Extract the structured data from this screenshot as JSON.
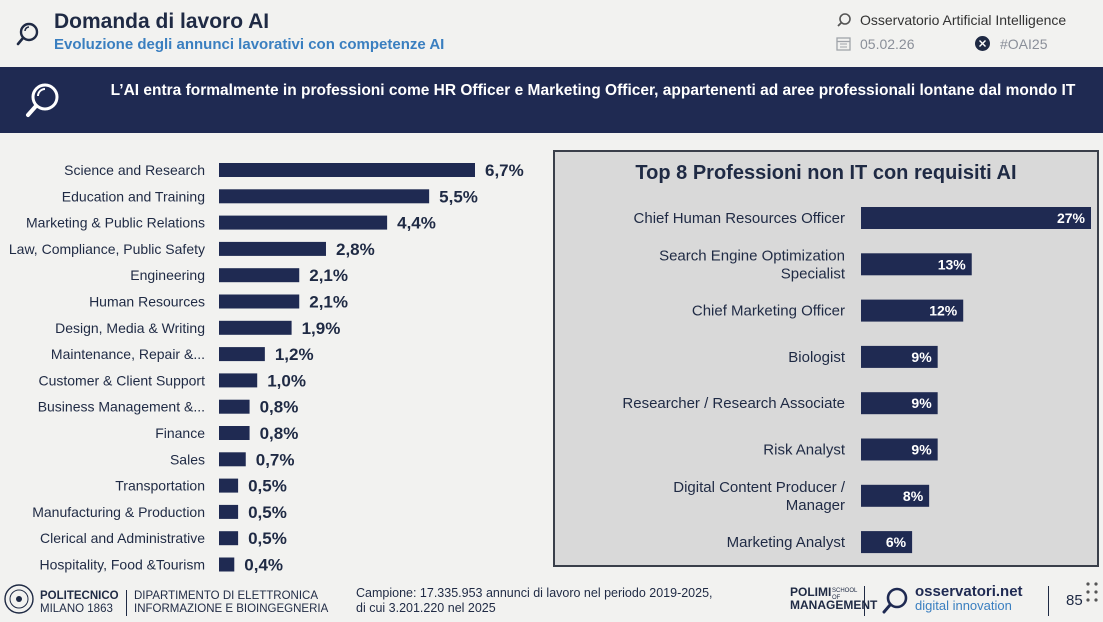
{
  "header": {
    "title": "Domanda di lavoro AI",
    "subtitle": "Evoluzione degli annunci lavorativi con competenze AI",
    "org": "Osservatorio Artificial Intelligence",
    "date": "05.02.26",
    "hashtag": "#OAI25"
  },
  "banner": {
    "text": "L’AI entra formalmente in professioni come HR Officer e Marketing Officer, appartenenti ad aree professionali lontane dal mondo IT"
  },
  "chart_data": [
    {
      "type": "bar",
      "orientation": "horizontal",
      "title": "",
      "categories": [
        "Science and Research",
        "Education and Training",
        "Marketing & Public Relations",
        "Law, Compliance, Public Safety",
        "Engineering",
        "Human Resources",
        "Design, Media & Writing",
        "Maintenance, Repair &...",
        "Customer & Client Support",
        "Business Management &...",
        "Finance",
        "Sales",
        "Transportation",
        "Manufacturing & Production",
        "Clerical and Administrative",
        "Hospitality, Food &Tourism"
      ],
      "values": [
        6.7,
        5.5,
        4.4,
        2.8,
        2.1,
        2.1,
        1.9,
        1.2,
        1.0,
        0.8,
        0.8,
        0.7,
        0.5,
        0.5,
        0.5,
        0.4
      ],
      "labels": [
        "6,7%",
        "5,5%",
        "4,4%",
        "2,8%",
        "2,1%",
        "2,1%",
        "1,9%",
        "1,2%",
        "1,0%",
        "0,8%",
        "0,8%",
        "0,7%",
        "0,5%",
        "0,5%",
        "0,5%",
        "0,4%"
      ],
      "unit": "%",
      "xlim": [
        0,
        6.7
      ],
      "grid": false,
      "color": "#1f2a52"
    },
    {
      "type": "bar",
      "orientation": "horizontal",
      "title": "Top 8 Professioni non IT con requisiti AI",
      "categories": [
        [
          "Chief Human Resources Officer"
        ],
        [
          "Search Engine Optimization",
          "Specialist"
        ],
        [
          "Chief Marketing Officer"
        ],
        [
          "Biologist"
        ],
        [
          "Researcher / Research Associate"
        ],
        [
          "Risk Analyst"
        ],
        [
          "Digital Content Producer /",
          "Manager"
        ],
        [
          "Marketing Analyst"
        ]
      ],
      "values": [
        27,
        13,
        12,
        9,
        9,
        9,
        8,
        6
      ],
      "labels": [
        "27%",
        "13%",
        "12%",
        "9%",
        "9%",
        "9%",
        "8%",
        "6%"
      ],
      "unit": "%",
      "xlim": [
        0,
        27
      ],
      "grid": false,
      "color": "#1f2a52"
    }
  ],
  "footer": {
    "polimi_line1": "POLITECNICO",
    "polimi_line2": "MILANO 1863",
    "dept_line1": "DIPARTIMENTO DI ELETTRONICA",
    "dept_line2": "INFORMAZIONE E BIOINGEGNERIA",
    "campione_line1": "Campione: 17.335.953 annunci di lavoro nel periodo 2019-2025,",
    "campione_line2": "di cui 3.201.220 nel 2025",
    "som_line1": "POLIMI",
    "som_line2": "MANAGEMENT",
    "som_small": "SCHOOL OF",
    "oss_brand": "osservatori.net",
    "oss_sub": "digital innovation",
    "page": "85"
  },
  "colors": {
    "navy": "#1f2a52",
    "blue": "#3a7fc0",
    "panel": "#d9d9d9"
  }
}
